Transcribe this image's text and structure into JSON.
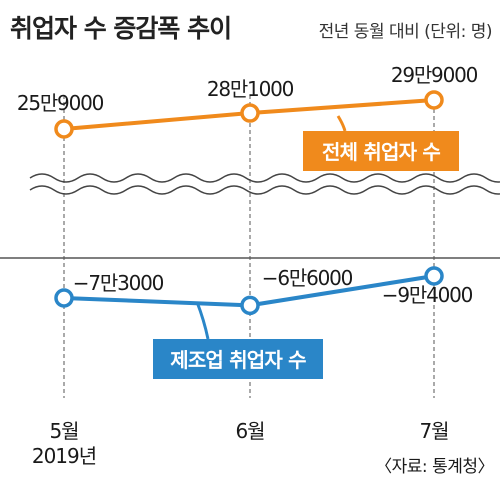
{
  "title": "취업자 수 증감폭 추이",
  "subtitle": "전년 동월 대비 (단위: 명)",
  "source": "〈자료: 통계청〉",
  "colors": {
    "total": "#f08a1c",
    "manufacturing": "#2a86c8",
    "grid": "#555555",
    "wave": "#444444"
  },
  "chart_data": {
    "type": "line",
    "categories": [
      "5월",
      "6월",
      "7월"
    ],
    "year_label": "2019년",
    "series": [
      {
        "name": "전체 취업자 수",
        "key": "total",
        "values": [
          259000,
          281000,
          299000
        ],
        "labels": [
          "25만9000",
          "28만1000",
          "29만9000"
        ]
      },
      {
        "name": "제조업 취업자 수",
        "key": "manufacturing",
        "values": [
          -73000,
          -66000,
          -94000
        ],
        "labels": [
          "−7만3000",
          "−6만6000",
          "−9만4000"
        ]
      }
    ],
    "axis_break": true
  }
}
